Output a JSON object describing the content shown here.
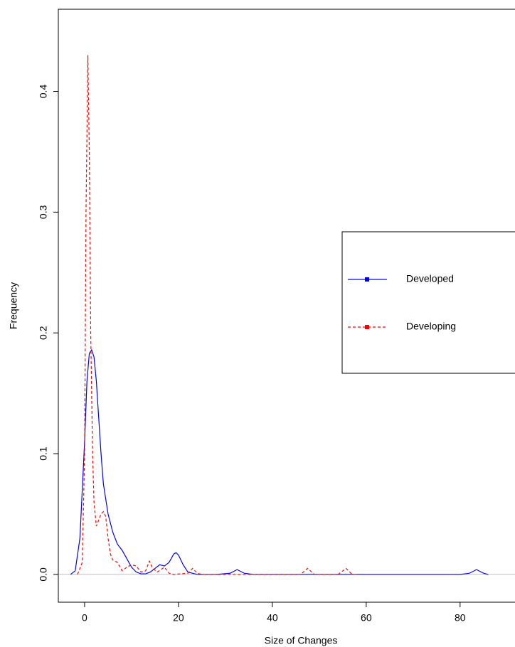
{
  "chart_data": {
    "type": "line",
    "xlabel": "Size of Changes",
    "ylabel": "Frequency",
    "xlim": [
      -5.6,
      91.7
    ],
    "ylim": [
      -0.023,
      0.468
    ],
    "xticks": [
      0,
      20,
      40,
      60,
      80
    ],
    "yticks": [
      {
        "value": 0,
        "label": "0.0"
      },
      0.1,
      0.2,
      0.3,
      0.4
    ],
    "series": [
      {
        "name": "Developed",
        "color": "#0000ff",
        "linestyle": "solid",
        "x": [
          -3,
          -2,
          -1,
          0,
          0.5,
          1,
          1.5,
          2,
          2.5,
          3,
          3.5,
          4,
          5,
          6,
          7,
          8,
          9,
          10,
          11,
          12,
          13,
          14,
          15,
          16,
          17,
          18,
          19,
          19.5,
          20,
          21,
          22,
          24,
          28,
          31,
          32.5,
          34,
          36,
          45,
          60,
          80,
          82,
          83.5,
          85,
          86
        ],
        "values": [
          0,
          0.003,
          0.03,
          0.11,
          0.16,
          0.183,
          0.186,
          0.18,
          0.16,
          0.13,
          0.1,
          0.075,
          0.05,
          0.035,
          0.025,
          0.02,
          0.013,
          0.006,
          0.002,
          0.0005,
          0.0005,
          0.002,
          0.005,
          0.008,
          0.007,
          0.01,
          0.017,
          0.018,
          0.016,
          0.008,
          0.002,
          0,
          0,
          0.001,
          0.004,
          0.001,
          0,
          0,
          0,
          0,
          0.001,
          0.004,
          0.001,
          0
        ]
      },
      {
        "name": "Developing",
        "color": "#ff0000",
        "linestyle": "dashed",
        "x": [
          -1.5,
          -0.5,
          0,
          0.3,
          0.7,
          1,
          1.3,
          1.7,
          2,
          2.5,
          3,
          3.5,
          4,
          4.5,
          5,
          5.5,
          6,
          7,
          8,
          9,
          10,
          11,
          12,
          13,
          13.8,
          14.5,
          15.5,
          17,
          18,
          19,
          22,
          23,
          24,
          25,
          30,
          46,
          47.5,
          49,
          54,
          55.7,
          57,
          58
        ],
        "values": [
          0,
          0.01,
          0.1,
          0.3,
          0.43,
          0.35,
          0.2,
          0.1,
          0.06,
          0.04,
          0.045,
          0.05,
          0.052,
          0.048,
          0.03,
          0.017,
          0.012,
          0.01,
          0.003,
          0.006,
          0.008,
          0.007,
          0.002,
          0.003,
          0.011,
          0.005,
          0.002,
          0.006,
          0.001,
          0,
          0.001,
          0.005,
          0.001,
          0,
          0,
          0,
          0.005,
          0,
          0,
          0.005,
          0,
          0
        ]
      }
    ]
  }
}
